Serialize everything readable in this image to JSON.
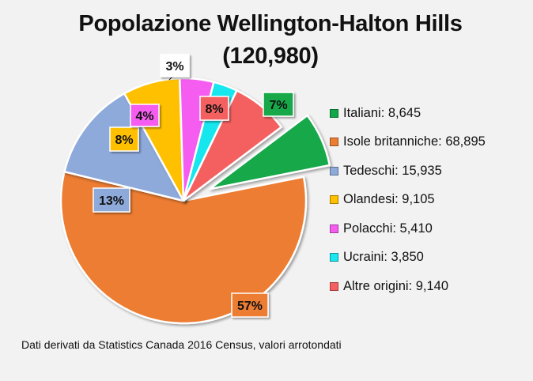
{
  "chart_data": {
    "type": "pie",
    "title": "Popolazione Wellington-Halton Hills",
    "subtitle": "(120,980)",
    "total": 120980,
    "slices": [
      {
        "name": "Italiani",
        "legend_label": "Italiani: 8,645",
        "value": 8645,
        "percent_label": "7%",
        "color": "#12a84a",
        "exploded": true
      },
      {
        "name": "Isole britanniche",
        "legend_label": "Isole britanniche: 68,895",
        "value": 68895,
        "percent_label": "57%",
        "color": "#ed7d31",
        "exploded": false
      },
      {
        "name": "Tedeschi",
        "legend_label": "Tedeschi: 15,935",
        "value": 15935,
        "percent_label": "13%",
        "color": "#8eaadb",
        "exploded": false
      },
      {
        "name": "Olandesi",
        "legend_label": "Olandesi: 9,105",
        "value": 9105,
        "percent_label": "8%",
        "color": "#ffc000",
        "exploded": false
      },
      {
        "name": "Polacchi",
        "legend_label": "Polacchi: 5,410",
        "value": 5410,
        "percent_label": "4%",
        "color": "#f55df0",
        "exploded": false
      },
      {
        "name": "Ucraini",
        "legend_label": "Ucraini: 3,850",
        "value": 3850,
        "percent_label": "3%",
        "color": "#19e6ee",
        "exploded": false
      },
      {
        "name": "Altre origini",
        "legend_label": "Altre origini: 9,140",
        "value": 9140,
        "percent_label": "8%",
        "color": "#f46060",
        "exploded": false
      }
    ],
    "legend_placement": "right",
    "footnote": "Dati derivati da Statistics Canada 2016 Census, valori arrotondati"
  }
}
